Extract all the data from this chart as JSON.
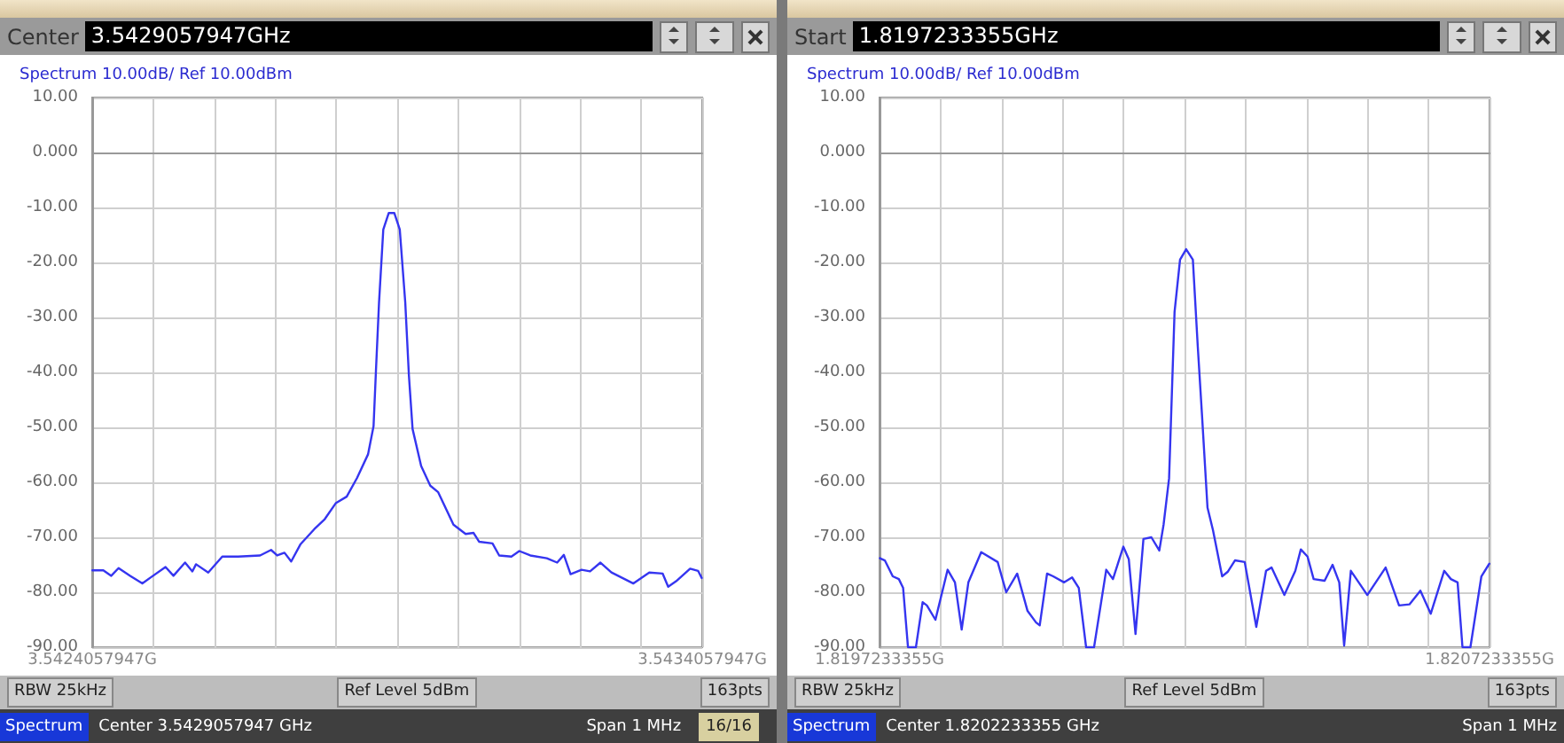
{
  "chart_data": [
    {
      "type": "line",
      "title": "Spectrum 10.00dB/ Ref 10.00dBm",
      "color": "#3535f0",
      "grid": true,
      "xlim": [
        3.5424057947,
        3.5434057947
      ],
      "xticks": [
        {
          "value": 3.5424057947,
          "label": "3.5424057947G"
        },
        {
          "value": 3.5425057947,
          "label": null
        },
        {
          "value": 3.5426057947,
          "label": null
        },
        {
          "value": 3.5427057947,
          "label": null
        },
        {
          "value": 3.5428057947,
          "label": null
        },
        {
          "value": 3.5429057947,
          "label": null
        },
        {
          "value": 3.5430057947,
          "label": null
        },
        {
          "value": 3.5431057947,
          "label": null
        },
        {
          "value": 3.5432057947,
          "label": null
        },
        {
          "value": 3.5433057947,
          "label": null
        },
        {
          "value": 3.5434057947,
          "label": "3.5434057947G"
        }
      ],
      "ylim": [
        -90,
        10
      ],
      "yticks": [
        {
          "value": -90,
          "label": "-90.00"
        },
        {
          "value": -80,
          "label": "-80.00"
        },
        {
          "value": -70,
          "label": "-70.00"
        },
        {
          "value": -60,
          "label": "-60.00"
        },
        {
          "value": -50,
          "label": "-50.00"
        },
        {
          "value": -40,
          "label": "-40.00"
        },
        {
          "value": -30,
          "label": "-30.00"
        },
        {
          "value": -20,
          "label": "-20.00"
        },
        {
          "value": -10,
          "label": "-10.00"
        },
        {
          "value": 0,
          "label": "0.000"
        },
        {
          "value": 10,
          "label": "10.00"
        }
      ],
      "x": [
        3.542406,
        3.542424,
        3.542437,
        3.542449,
        3.542468,
        3.542488,
        3.542503,
        3.542526,
        3.542539,
        3.542558,
        3.54257,
        3.542576,
        3.542596,
        3.542619,
        3.542645,
        3.542681,
        3.542699,
        3.542709,
        3.542721,
        3.542732,
        3.542747,
        3.54277,
        3.542787,
        3.542805,
        3.542823,
        3.54284,
        3.542858,
        3.542867,
        3.542871,
        3.542876,
        3.542883,
        3.542892,
        3.542901,
        3.54291,
        3.542919,
        3.542925,
        3.542931,
        3.542945,
        3.54296,
        3.542973,
        3.542998,
        3.543018,
        3.543031,
        3.54304,
        3.543062,
        3.543073,
        3.543093,
        3.543106,
        3.543124,
        3.543151,
        3.543168,
        3.543179,
        3.54319,
        3.543208,
        3.543222,
        3.543239,
        3.543257,
        3.543293,
        3.543319,
        3.543341,
        3.54335,
        3.543363,
        3.543386,
        3.543399,
        3.543405
      ],
      "values": [
        -76,
        -76,
        -77,
        -75.6,
        -77,
        -78.4,
        -77.2,
        -75.4,
        -77,
        -74.6,
        -76.2,
        -74.9,
        -76.4,
        -73.5,
        -73.5,
        -73.3,
        -72.3,
        -73.3,
        -72.8,
        -74.4,
        -71.3,
        -68.5,
        -66.7,
        -63.8,
        -62.6,
        -59.2,
        -54.9,
        -49.8,
        -39.6,
        -27.3,
        -14,
        -11,
        -11,
        -14,
        -27.3,
        -40.6,
        -50.3,
        -57,
        -60.6,
        -61.8,
        -67.7,
        -69.4,
        -69.2,
        -70.8,
        -71.1,
        -73.3,
        -73.5,
        -72.5,
        -73.3,
        -73.8,
        -74.6,
        -73.2,
        -76.7,
        -75.9,
        -76.2,
        -74.6,
        -76.4,
        -78.4,
        -76.4,
        -76.6,
        -79,
        -78,
        -75.7,
        -76.1,
        -77.4
      ],
      "annotations": [
        "Center",
        "3.5429057947GHz",
        "RBW 25kHz",
        "Ref Level 5dBm",
        "163pts",
        "Spectrum",
        "Center 3.5429057947 GHz",
        "Span 1 MHz",
        "16/16"
      ]
    },
    {
      "type": "line",
      "title": "Spectrum 10.00dB/ Ref 10.00dBm",
      "color": "#3535f0",
      "grid": true,
      "xlim": [
        1.8197233355,
        1.8207233355
      ],
      "xticks": [
        {
          "value": 1.8197233355,
          "label": "1.8197233355G"
        },
        {
          "value": 1.8198233355,
          "label": null
        },
        {
          "value": 1.8199233355,
          "label": null
        },
        {
          "value": 1.8200233355,
          "label": null
        },
        {
          "value": 1.8201233355,
          "label": null
        },
        {
          "value": 1.8202233355,
          "label": null
        },
        {
          "value": 1.8203233355,
          "label": null
        },
        {
          "value": 1.8204233355,
          "label": null
        },
        {
          "value": 1.8205233355,
          "label": null
        },
        {
          "value": 1.8206233355,
          "label": null
        },
        {
          "value": 1.8207233355,
          "label": "1.8207233355G"
        }
      ],
      "ylim": [
        -90,
        10
      ],
      "yticks": [
        {
          "value": -90,
          "label": "-90.00"
        },
        {
          "value": -80,
          "label": "-80.00"
        },
        {
          "value": -70,
          "label": "-70.00"
        },
        {
          "value": -60,
          "label": "-60.00"
        },
        {
          "value": -50,
          "label": "-50.00"
        },
        {
          "value": -40,
          "label": "-40.00"
        },
        {
          "value": -30,
          "label": "-30.00"
        },
        {
          "value": -20,
          "label": "-20.00"
        },
        {
          "value": -10,
          "label": "-10.00"
        },
        {
          "value": 0,
          "label": "0.000"
        },
        {
          "value": 10,
          "label": "10.00"
        }
      ],
      "x": [
        1.819724,
        1.819732,
        1.819745,
        1.819755,
        1.819762,
        1.81977,
        1.819783,
        1.819794,
        1.819801,
        1.819815,
        1.819835,
        1.819847,
        1.819858,
        1.819869,
        1.81989,
        1.819917,
        1.819931,
        1.819949,
        1.819966,
        1.81998,
        1.819986,
        1.819998,
        1.820008,
        1.820026,
        1.820039,
        1.82005,
        1.820062,
        1.820075,
        1.820095,
        1.820106,
        1.820123,
        1.820132,
        1.820143,
        1.820156,
        1.820169,
        1.820182,
        1.820189,
        1.820198,
        1.820207,
        1.820216,
        1.820226,
        1.820237,
        1.820245,
        1.820252,
        1.820261,
        1.82027,
        1.820285,
        1.820294,
        1.820306,
        1.820322,
        1.820341,
        1.820357,
        1.820366,
        1.820387,
        1.820405,
        1.820414,
        1.820425,
        1.820435,
        1.820453,
        1.820466,
        1.820477,
        1.820485,
        1.820496,
        1.820523,
        1.820553,
        1.820575,
        1.820592,
        1.82061,
        1.820627,
        1.820649,
        1.82066,
        1.820671,
        1.820679,
        1.820692,
        1.82071,
        1.820723
      ],
      "values": [
        -73.8,
        -74.2,
        -77.1,
        -77.6,
        -79.2,
        -90,
        -90,
        -81.8,
        -82.4,
        -85,
        -75.9,
        -78.2,
        -86.8,
        -78.2,
        -72.7,
        -74.5,
        -80,
        -76.6,
        -83.4,
        -85.5,
        -86,
        -76.6,
        -77.1,
        -78.2,
        -77.3,
        -79.2,
        -90,
        -90,
        -75.9,
        -77.6,
        -71.7,
        -74,
        -87.6,
        -70.3,
        -70,
        -72.4,
        -67.7,
        -59.3,
        -29,
        -19.5,
        -17.6,
        -19.5,
        -35.2,
        -47.8,
        -64.6,
        -68.7,
        -77.1,
        -76.3,
        -74.2,
        -74.5,
        -86.3,
        -76.1,
        -75.5,
        -80.5,
        -76.1,
        -72.2,
        -73.5,
        -77.6,
        -77.9,
        -75,
        -78.2,
        -89.7,
        -76.1,
        -80.5,
        -75.5,
        -82.4,
        -82.2,
        -79.7,
        -83.9,
        -76.1,
        -77.6,
        -78.2,
        -90,
        -90,
        -77.1,
        -74.8
      ],
      "annotations": [
        "Start",
        "1.8197233355GHz",
        "RBW 25kHz",
        "Ref Level 5dBm",
        "163pts",
        "Spectrum",
        "Center 1.8202233355 GHz",
        "Span 1 MHz"
      ]
    }
  ]
}
